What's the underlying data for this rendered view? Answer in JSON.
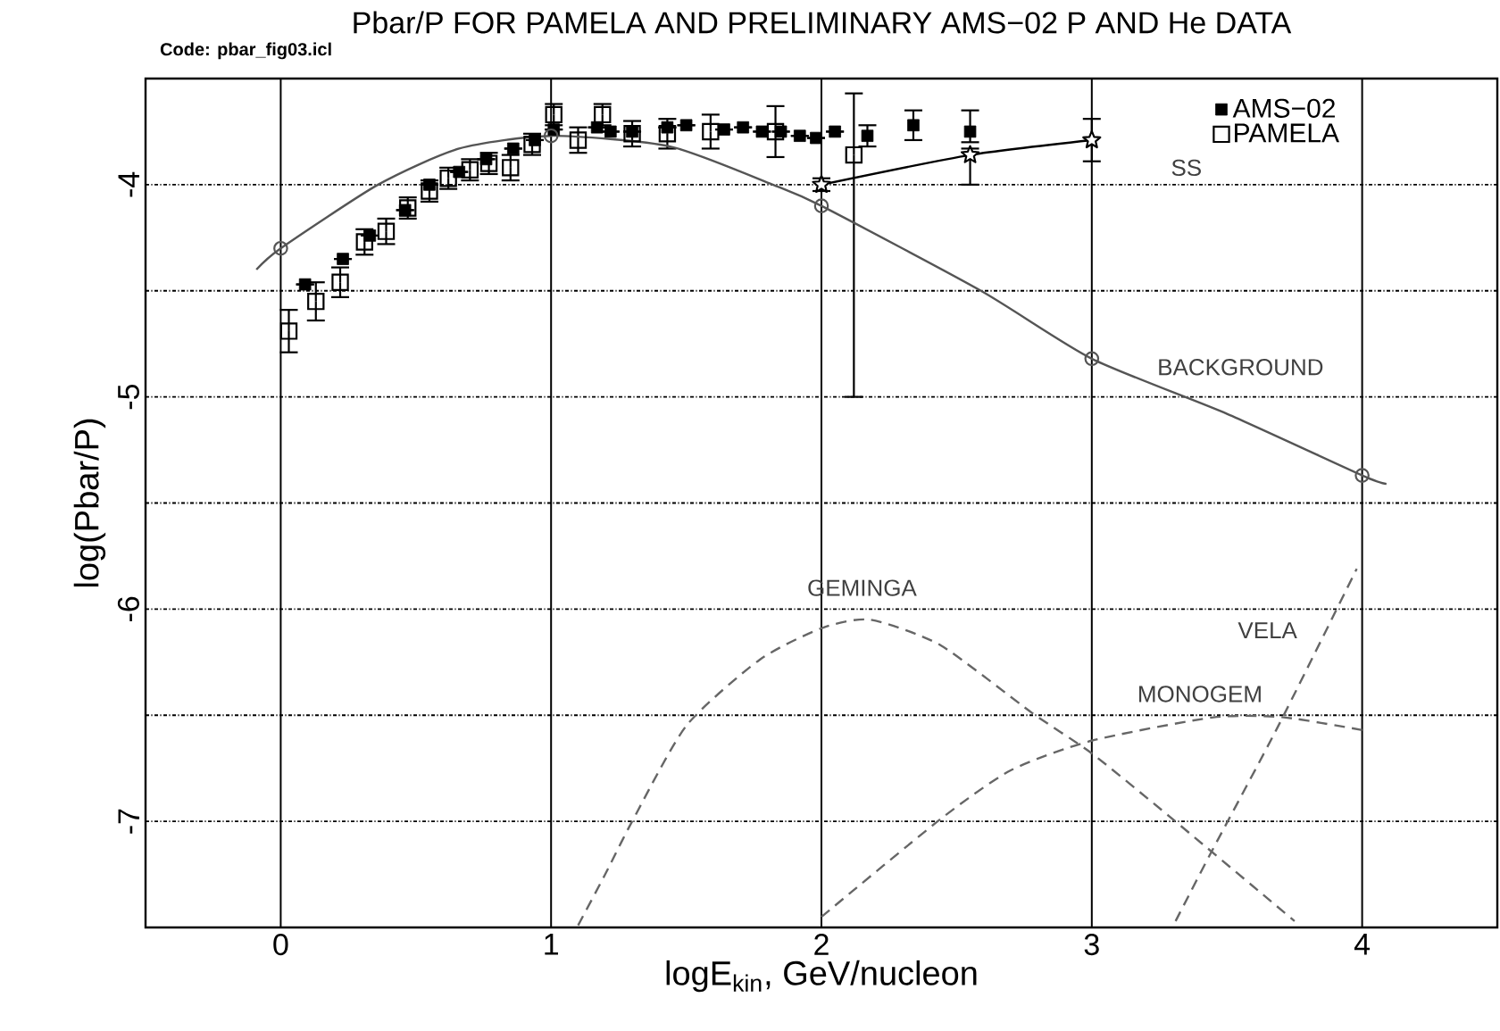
{
  "chart_data": {
    "type": "scatter",
    "title": "Pbar/P FOR PAMELA AND PRELIMINARY AMS−02 P AND He DATA",
    "xlabel": "logE$_{kin}$, GeV/nucleon",
    "ylabel": "log(Pbar/P)",
    "xlim": [
      -0.5,
      4.5
    ],
    "ylim": [
      -7.5,
      -3.5
    ],
    "xticks": [
      0,
      1,
      2,
      3,
      4
    ],
    "yticks": [
      -7,
      {
        "value": -6.5,
        "label": null
      },
      -6,
      {
        "value": -5.5,
        "label": null
      },
      -5,
      {
        "value": -4.5,
        "label": null
      },
      -4
    ],
    "grid": true,
    "legend": "top right",
    "series": [
      {
        "name": "AMS−02",
        "type": "scatter",
        "marker": "square",
        "color": "#000000",
        "x": [
          0.09,
          0.23,
          0.33,
          0.46,
          0.55,
          0.66,
          0.76,
          0.86,
          0.94,
          1.01,
          1.17,
          1.22,
          1.3,
          1.43,
          1.5,
          1.64,
          1.71,
          1.78,
          1.85,
          1.92,
          1.98,
          2.05,
          2.17,
          2.34,
          2.55
        ],
        "values": [
          -4.47,
          -4.35,
          -4.24,
          -4.12,
          -4.0,
          -3.94,
          -3.88,
          -3.83,
          -3.79,
          -3.74,
          -3.73,
          -3.75,
          -3.75,
          -3.73,
          -3.72,
          -3.74,
          -3.73,
          -3.75,
          -3.75,
          -3.77,
          -3.78,
          -3.75,
          -3.77,
          -3.72,
          -3.75
        ],
        "errors": [
          null,
          null,
          null,
          null,
          null,
          null,
          null,
          null,
          null,
          null,
          null,
          null,
          null,
          null,
          null,
          null,
          null,
          null,
          null,
          null,
          null,
          null,
          0.05,
          0.07,
          [
            -3.8,
            -3.65
          ]
        ]
      },
      {
        "name": "PAMELA",
        "type": "scatter",
        "marker": "square",
        "color": "#000000",
        "x": [
          0.03,
          0.13,
          0.22,
          0.31,
          0.39,
          0.47,
          0.55,
          0.62,
          0.7,
          0.77,
          0.85,
          0.93,
          1.01,
          1.1,
          1.19,
          1.3,
          1.43,
          1.59,
          1.83,
          2.12
        ],
        "values": [
          -4.69,
          -4.55,
          -4.46,
          -4.27,
          -4.22,
          -4.11,
          -4.03,
          -3.97,
          -3.93,
          -3.9,
          -3.92,
          -3.81,
          -3.67,
          -3.79,
          -3.67,
          -3.76,
          -3.76,
          -3.75,
          -3.75,
          -3.86
        ],
        "errors": [
          0.1,
          0.09,
          0.07,
          0.06,
          0.06,
          0.05,
          0.05,
          0.05,
          0.05,
          0.05,
          0.06,
          0.05,
          0.05,
          0.06,
          0.05,
          0.06,
          0.07,
          0.08,
          0.12,
          [
            -5.0,
            -3.57
          ]
        ]
      },
      {
        "type": "line",
        "marker": "star",
        "line_style": "solid",
        "color": "#000000",
        "x": [
          2,
          2.55,
          3
        ],
        "values": [
          -4.0,
          -3.86,
          -3.79
        ],
        "errors": [
          0.03,
          [
            -4.0,
            -3.83
          ],
          0.1
        ]
      },
      {
        "type": "line",
        "marker": "none",
        "line_style": "solid",
        "color": "#555555",
        "x": [
          -0.09,
          0,
          0.36,
          0.66,
          1,
          1.44,
          1.82,
          2,
          2.59,
          3,
          3.5,
          4,
          4.09
        ],
        "values": [
          -4.4,
          -4.3,
          -4.0,
          -3.83,
          -3.77,
          -3.82,
          -4.0,
          -4.1,
          -4.5,
          -4.82,
          -5.08,
          -5.37,
          -5.41
        ]
      },
      {
        "type": "scatter",
        "marker": "circle",
        "color": "#555555",
        "x": [
          0,
          1,
          2,
          3,
          4
        ],
        "values": [
          -4.3,
          -3.77,
          -4.1,
          -4.82,
          -5.37
        ]
      },
      {
        "type": "line",
        "marker": "none",
        "line_style": "dashed",
        "color": "#666666",
        "x": [
          1.1,
          1.2,
          1.3,
          1.5,
          1.77,
          2.0,
          2.18,
          2.44,
          2.78,
          3.0,
          3.29,
          3.75
        ],
        "values": [
          -7.49,
          -7.25,
          -7.0,
          -6.55,
          -6.24,
          -6.09,
          -6.05,
          -6.17,
          -6.49,
          -6.68,
          -6.98,
          -7.47
        ]
      },
      {
        "type": "line",
        "marker": "none",
        "line_style": "dashed",
        "color": "#666666",
        "x": [
          2.0,
          2.44,
          2.7,
          3.0,
          3.45,
          3.71,
          4.0
        ],
        "values": [
          -7.45,
          -6.99,
          -6.76,
          -6.62,
          -6.51,
          -6.51,
          -6.57
        ]
      },
      {
        "type": "line",
        "marker": "none",
        "line_style": "dashed",
        "color": "#666666",
        "x": [
          3.31,
          3.44,
          3.69,
          3.98
        ],
        "values": [
          -7.47,
          -7.15,
          -6.55,
          -5.81
        ]
      }
    ],
    "annotations": [
      "Code: pbar_fig03.icl",
      "SS",
      "BACKGROUND",
      "GEMINGA",
      "MONOGEM",
      "VELA"
    ]
  }
}
